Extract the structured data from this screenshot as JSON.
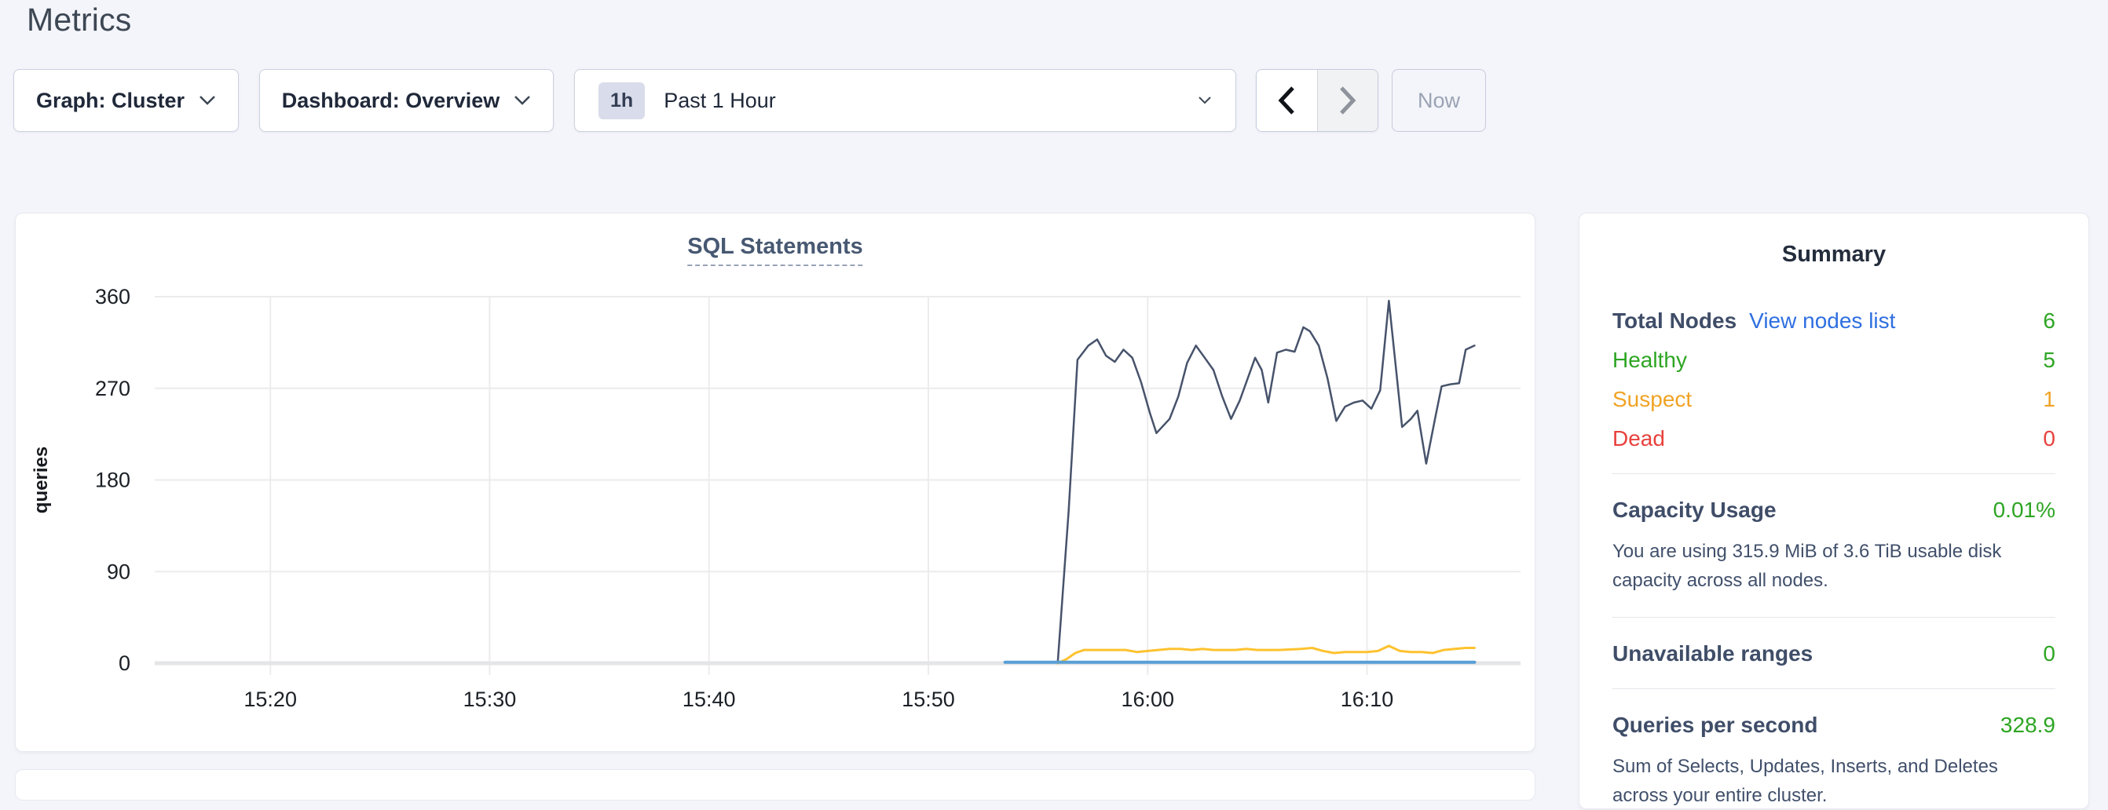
{
  "page": {
    "title": "Metrics"
  },
  "toolbar": {
    "graph_dropdown_label": "Graph: Cluster",
    "dashboard_dropdown_label": "Dashboard: Overview",
    "time_window_badge": "1h",
    "time_window_label": "Past 1 Hour",
    "now_button_label": "Now",
    "icons": [
      "chevron-down-icon",
      "chevron-left-icon",
      "chevron-right-icon"
    ]
  },
  "chart_data": {
    "type": "line",
    "title": "SQL Statements",
    "ylabel": "queries",
    "ylim": [
      0,
      360
    ],
    "y_ticks": [
      0,
      90,
      180,
      270,
      360
    ],
    "x_domain_minutes_after_1500": [
      14.3,
      77.0
    ],
    "x_ticks": [
      {
        "t": 20,
        "label": "15:20"
      },
      {
        "t": 30,
        "label": "15:30"
      },
      {
        "t": 40,
        "label": "15:40"
      },
      {
        "t": 50,
        "label": "15:50"
      },
      {
        "t": 60,
        "label": "16:00"
      },
      {
        "t": 70,
        "label": "16:10"
      }
    ],
    "grid": true,
    "legend": "none",
    "baseline_color": "#e4e5e7",
    "series": [
      {
        "name": "series-1",
        "color": "#47536b",
        "width": 2.5,
        "points": [
          [
            55.9,
            0
          ],
          [
            56.4,
            150
          ],
          [
            56.8,
            298
          ],
          [
            57.3,
            312
          ],
          [
            57.7,
            318
          ],
          [
            58.1,
            302
          ],
          [
            58.5,
            296
          ],
          [
            58.9,
            308
          ],
          [
            59.3,
            300
          ],
          [
            59.7,
            276
          ],
          [
            60.1,
            246
          ],
          [
            60.4,
            226
          ],
          [
            61.0,
            240
          ],
          [
            61.4,
            262
          ],
          [
            61.8,
            295
          ],
          [
            62.2,
            312
          ],
          [
            62.6,
            300
          ],
          [
            63.0,
            288
          ],
          [
            63.4,
            262
          ],
          [
            63.8,
            240
          ],
          [
            64.2,
            258
          ],
          [
            64.6,
            282
          ],
          [
            64.9,
            300
          ],
          [
            65.2,
            288
          ],
          [
            65.5,
            256
          ],
          [
            65.9,
            305
          ],
          [
            66.3,
            308
          ],
          [
            66.7,
            306
          ],
          [
            67.1,
            330
          ],
          [
            67.4,
            326
          ],
          [
            67.8,
            312
          ],
          [
            68.2,
            280
          ],
          [
            68.6,
            238
          ],
          [
            69.0,
            252
          ],
          [
            69.4,
            256
          ],
          [
            69.8,
            258
          ],
          [
            70.2,
            250
          ],
          [
            70.6,
            268
          ],
          [
            71.0,
            356
          ],
          [
            71.6,
            232
          ],
          [
            72.0,
            240
          ],
          [
            72.3,
            248
          ],
          [
            72.7,
            196
          ],
          [
            73.1,
            240
          ],
          [
            73.4,
            272
          ],
          [
            73.8,
            274
          ],
          [
            74.2,
            275
          ],
          [
            74.5,
            308
          ],
          [
            74.9,
            312
          ]
        ]
      },
      {
        "name": "series-2",
        "color": "#fdc22f",
        "width": 3,
        "points": [
          [
            55.9,
            0
          ],
          [
            56.3,
            4
          ],
          [
            56.7,
            10
          ],
          [
            57.1,
            13
          ],
          [
            58.0,
            13
          ],
          [
            59.0,
            13
          ],
          [
            59.5,
            11
          ],
          [
            60.0,
            12
          ],
          [
            61.0,
            14
          ],
          [
            61.5,
            14
          ],
          [
            62.0,
            13
          ],
          [
            62.5,
            14
          ],
          [
            63.0,
            13
          ],
          [
            64.0,
            13
          ],
          [
            64.5,
            14
          ],
          [
            65.0,
            13
          ],
          [
            66.0,
            13
          ],
          [
            67.0,
            14
          ],
          [
            67.5,
            15
          ],
          [
            68.0,
            12
          ],
          [
            68.5,
            10
          ],
          [
            69.0,
            11
          ],
          [
            70.0,
            11
          ],
          [
            70.5,
            12
          ],
          [
            71.0,
            17
          ],
          [
            71.5,
            12
          ],
          [
            72.0,
            11
          ],
          [
            72.5,
            11
          ],
          [
            73.0,
            10
          ],
          [
            73.5,
            13
          ],
          [
            74.0,
            14
          ],
          [
            74.5,
            15
          ],
          [
            74.9,
            15
          ]
        ]
      },
      {
        "name": "series-3",
        "color": "#5a9fd6",
        "width": 4,
        "points": [
          [
            53.5,
            1
          ],
          [
            74.9,
            1
          ]
        ]
      }
    ]
  },
  "summary": {
    "title": "Summary",
    "total_nodes": {
      "label": "Total Nodes",
      "link": "View nodes list",
      "value": "6"
    },
    "healthy": {
      "label": "Healthy",
      "value": "5"
    },
    "suspect": {
      "label": "Suspect",
      "value": "1"
    },
    "dead": {
      "label": "Dead",
      "value": "0"
    },
    "capacity": {
      "label": "Capacity Usage",
      "value": "0.01%",
      "description": "You are using 315.9 MiB of 3.6 TiB usable disk capacity across all nodes."
    },
    "unavailable_ranges": {
      "label": "Unavailable ranges",
      "value": "0"
    },
    "qps": {
      "label": "Queries per second",
      "value": "328.9",
      "description": "Sum of Selects, Updates, Inserts, and Deletes across your entire cluster."
    },
    "colors": {
      "green": "#2da523",
      "orange": "#f0a325",
      "red": "#e8413c",
      "link": "#2f6fe0"
    }
  }
}
